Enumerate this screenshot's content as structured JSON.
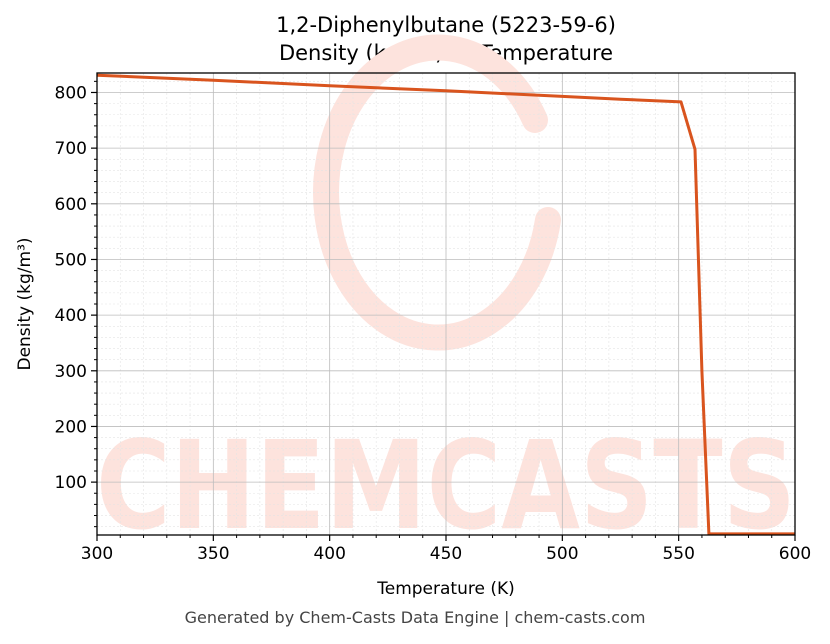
{
  "footer": "Generated by Chem-Casts Data Engine | chem-casts.com",
  "watermark": "CHEMCASTS",
  "chart_data": {
    "type": "line",
    "title": "1,2-Diphenylbutane (5223-59-6)",
    "subtitle": "Density (kg/m³) vs Temperature",
    "xlabel": "Temperature (K)",
    "ylabel": "Density (kg/m³)",
    "xlim": [
      300,
      600
    ],
    "ylim": [
      5,
      835
    ],
    "xticks": [
      300,
      350,
      400,
      450,
      500,
      550,
      600
    ],
    "yticks": [
      100,
      200,
      300,
      400,
      500,
      600,
      700,
      800
    ],
    "grid": true,
    "line_color": "#d9541e",
    "watermark_color": "#fde3dd",
    "series": [
      {
        "x": [
          300,
          350,
          400,
          450,
          475,
          500,
          525,
          551,
          557,
          560,
          563,
          600
        ],
        "y": [
          831,
          822,
          812,
          803,
          798,
          793,
          788,
          783,
          698,
          300,
          7,
          7
        ]
      }
    ]
  }
}
